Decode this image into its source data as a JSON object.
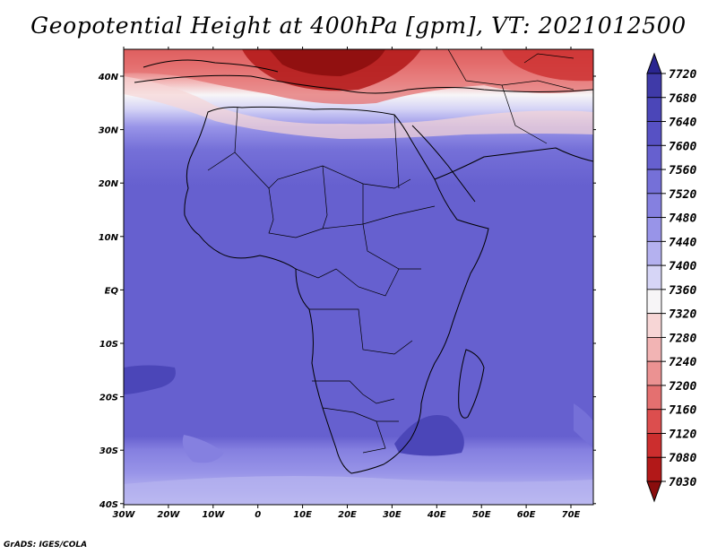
{
  "title": "Geopotential Height at 400hPa [gpm], VT: 2021012500",
  "credit": "GrADS: IGES/COLA",
  "map": {
    "projection": "latlon",
    "lon_range": [
      -30,
      75
    ],
    "lat_range": [
      -40,
      45
    ],
    "lat_ticks": [
      "40N",
      "30N",
      "20N",
      "10N",
      "EQ",
      "10S",
      "20S",
      "30S",
      "40S"
    ],
    "lon_ticks": [
      "30W",
      "20W",
      "10W",
      "0",
      "10E",
      "20E",
      "30E",
      "40E",
      "50E",
      "60E",
      "70E"
    ],
    "field": "geopotential height 400 hPa"
  },
  "colorbar": {
    "labels": [
      "7720",
      "7680",
      "7640",
      "7600",
      "7560",
      "7520",
      "7480",
      "7440",
      "7400",
      "7360",
      "7320",
      "7280",
      "7240",
      "7200",
      "7160",
      "7120",
      "7080",
      "7030"
    ],
    "colors": [
      "#2a2590",
      "#3f3aa8",
      "#4b46b8",
      "#5751c4",
      "#6660cf",
      "#7570d8",
      "#8580e0",
      "#9894e8",
      "#b4b1ef",
      "#d6d5f6",
      "#f7f5f7",
      "#f7d6d6",
      "#f2b4b4",
      "#eb9292",
      "#e47070",
      "#dc4e4e",
      "#cc2e2e",
      "#b21818",
      "#8a0d0d"
    ]
  }
}
